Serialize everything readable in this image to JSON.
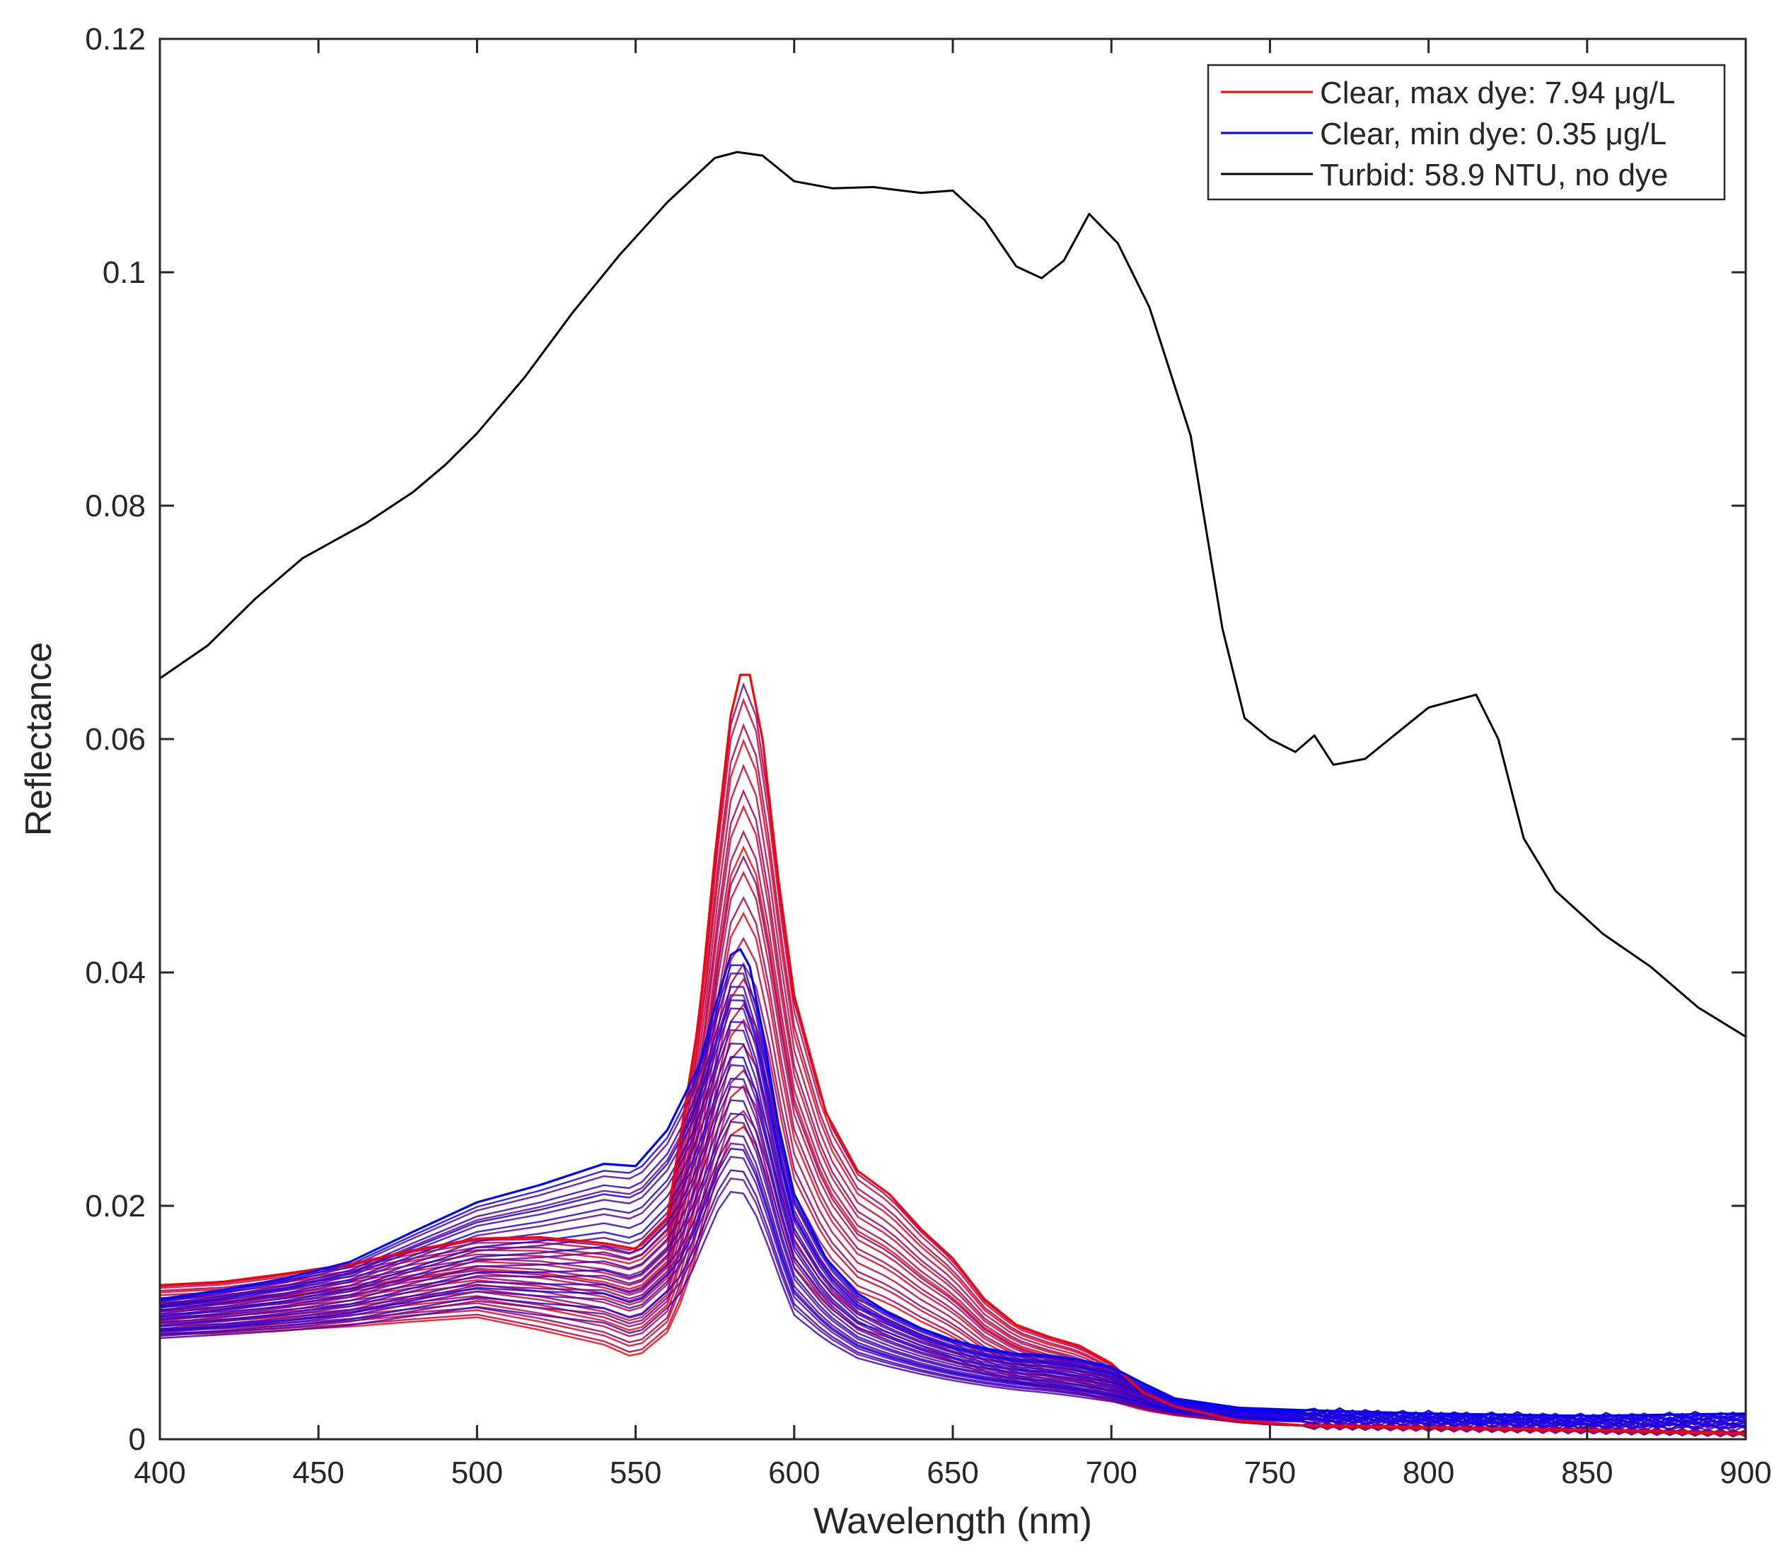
{
  "chart_data": {
    "type": "line",
    "title": "",
    "xlabel": "Wavelength (nm)",
    "ylabel": "Reflectance",
    "xlim": [
      400,
      900
    ],
    "ylim": [
      0,
      0.12
    ],
    "xticks": [
      "400",
      "450",
      "500",
      "550",
      "600",
      "650",
      "700",
      "750",
      "800",
      "850",
      "900"
    ],
    "yticks": [
      "0",
      "0.02",
      "0.04",
      "0.06",
      "0.08",
      "0.1",
      "0.12"
    ],
    "grid": false,
    "legend_position": "top-right",
    "legend": [
      {
        "label": "Clear, max dye: 7.94 μg/L",
        "color": "#ff0000"
      },
      {
        "label": "Clear, min dye: 0.35 μg/L",
        "color": "#0000ff"
      },
      {
        "label": "Turbid: 58.9 NTU, no dye",
        "color": "#000000"
      }
    ],
    "series": [
      {
        "name": "Turbid: 58.9 NTU, no dye",
        "color": "#000000",
        "x": [
          400,
          415,
          430,
          445,
          455,
          465,
          480,
          490,
          500,
          515,
          530,
          545,
          560,
          575,
          582,
          590,
          600,
          612,
          625,
          640,
          650,
          660,
          670,
          678,
          685,
          693,
          702,
          712,
          725,
          735,
          742,
          750,
          758,
          764,
          770,
          780,
          800,
          815,
          822,
          830,
          840,
          855,
          870,
          885,
          900
        ],
        "y": [
          0.0652,
          0.068,
          0.072,
          0.0755,
          0.077,
          0.0785,
          0.0812,
          0.0835,
          0.0862,
          0.091,
          0.0965,
          0.1015,
          0.106,
          0.1098,
          0.1103,
          0.11,
          0.1078,
          0.1072,
          0.1073,
          0.1068,
          0.107,
          0.1045,
          0.1005,
          0.0995,
          0.101,
          0.105,
          0.1025,
          0.097,
          0.086,
          0.0695,
          0.0618,
          0.06,
          0.0589,
          0.0603,
          0.0578,
          0.0583,
          0.0627,
          0.0638,
          0.06,
          0.0515,
          0.047,
          0.0433,
          0.0405,
          0.037,
          0.0345
        ]
      },
      {
        "name": "Clear, max dye: 7.94 μg/L",
        "color": "#ff0000",
        "x": [
          400,
          420,
          440,
          460,
          480,
          500,
          520,
          540,
          550,
          560,
          570,
          575,
          580,
          583,
          586,
          590,
          595,
          600,
          610,
          620,
          630,
          640,
          650,
          660,
          670,
          680,
          690,
          700,
          710,
          720,
          740,
          760,
          800,
          850,
          900
        ],
        "y": [
          0.0132,
          0.0135,
          0.0142,
          0.015,
          0.0162,
          0.0172,
          0.0173,
          0.0168,
          0.0163,
          0.019,
          0.036,
          0.05,
          0.062,
          0.0655,
          0.0655,
          0.06,
          0.048,
          0.038,
          0.028,
          0.023,
          0.021,
          0.018,
          0.0155,
          0.012,
          0.0098,
          0.0088,
          0.008,
          0.0065,
          0.004,
          0.0028,
          0.0016,
          0.0012,
          0.001,
          0.0008,
          0.0005
        ]
      },
      {
        "name": "Clear, min dye: 0.35 μg/L",
        "color": "#0000ff",
        "x": [
          400,
          420,
          440,
          460,
          480,
          500,
          520,
          540,
          550,
          560,
          570,
          575,
          580,
          583,
          586,
          590,
          595,
          600,
          610,
          620,
          630,
          640,
          650,
          660,
          670,
          680,
          690,
          700,
          710,
          720,
          740,
          760,
          800,
          850,
          900
        ],
        "y": [
          0.012,
          0.0128,
          0.0138,
          0.0152,
          0.0178,
          0.0203,
          0.0218,
          0.0236,
          0.0234,
          0.0265,
          0.032,
          0.037,
          0.0415,
          0.042,
          0.0405,
          0.035,
          0.027,
          0.021,
          0.0155,
          0.0125,
          0.0108,
          0.0095,
          0.0085,
          0.0078,
          0.0073,
          0.0072,
          0.0068,
          0.0062,
          0.0048,
          0.0035,
          0.0027,
          0.0025,
          0.0022,
          0.002,
          0.0022
        ]
      }
    ],
    "envelope_note": "",
    "axis_color": "#262626"
  }
}
